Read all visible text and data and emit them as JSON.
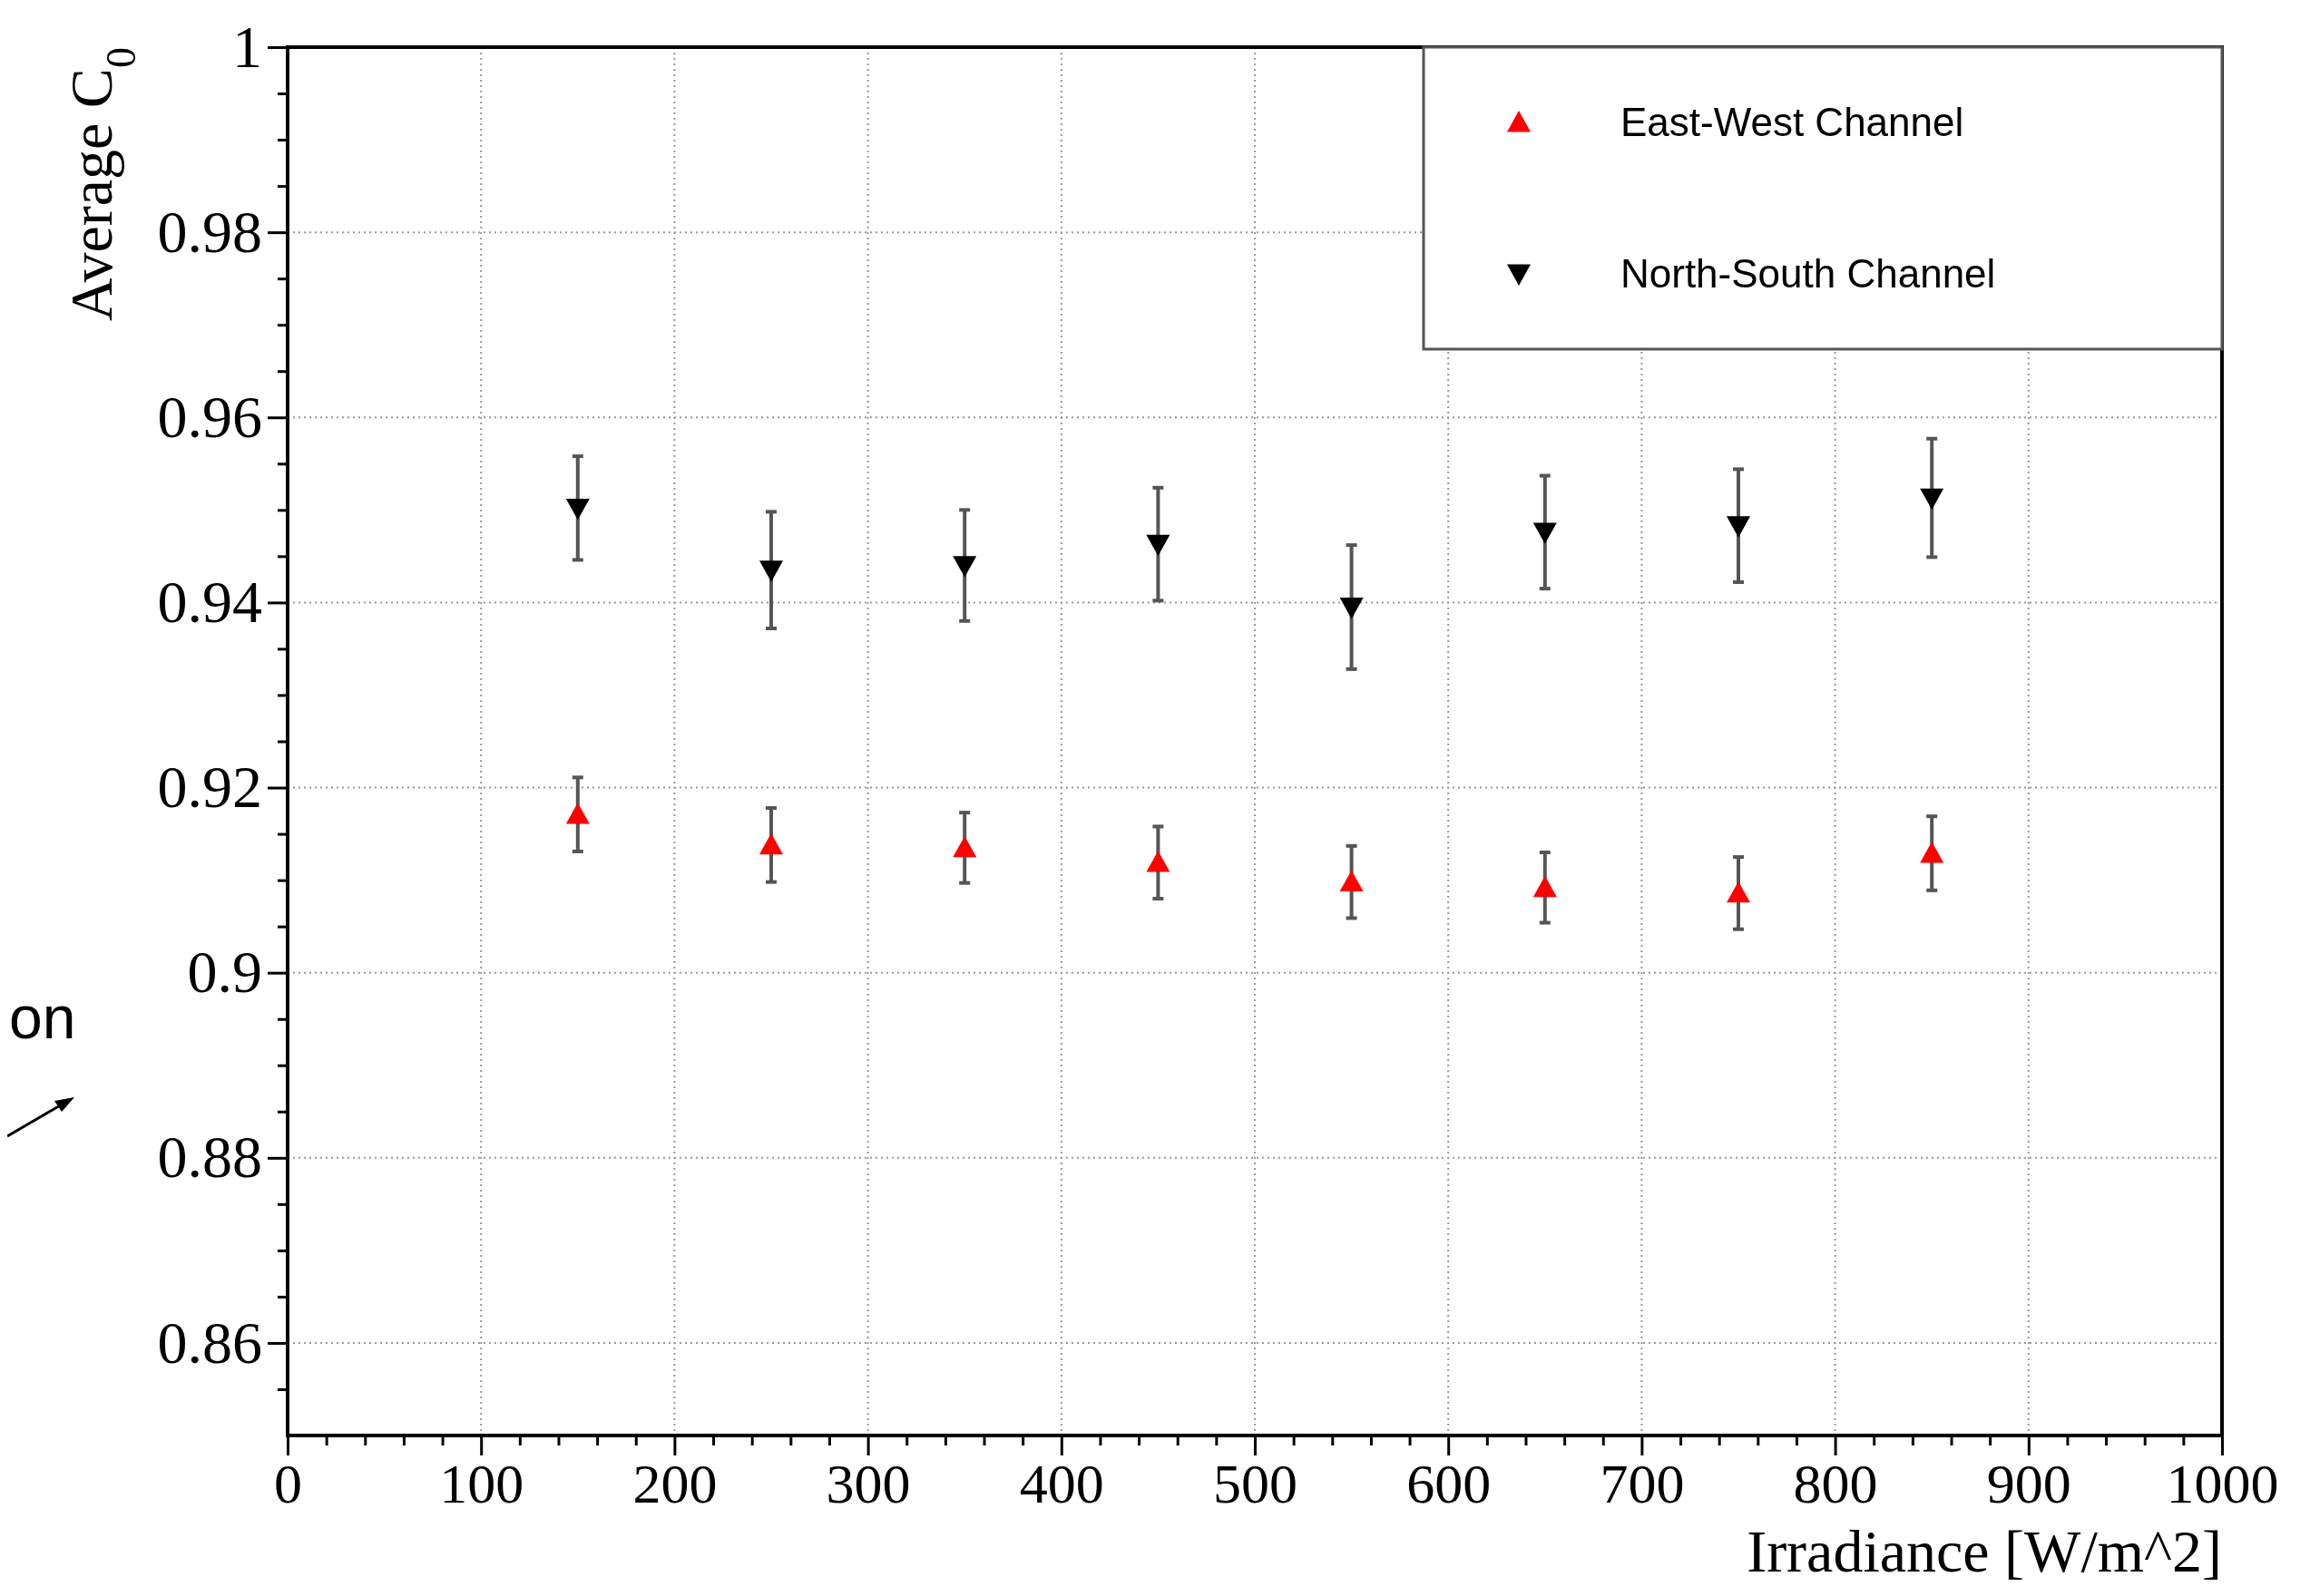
{
  "chart_data": {
    "type": "scatter",
    "xlabel": "Irradiance [W/m^2]",
    "ylabel": "Average C$_{0}$",
    "x": [
      150,
      250,
      350,
      450,
      550,
      650,
      750,
      850
    ],
    "series": [
      {
        "name": "East-West Channel",
        "color": "#ff0000",
        "marker": "triangle",
        "values": [
          0.9171,
          0.9138,
          0.9135,
          0.9119,
          0.9098,
          0.9092,
          0.9086,
          0.9129
        ],
        "errors": [
          0.004,
          0.004,
          0.0038,
          0.0039,
          0.0039,
          0.0038,
          0.0039,
          0.004
        ]
      },
      {
        "name": "North-South Channel",
        "color": "#000000",
        "marker": "triangle-down",
        "values": [
          0.9502,
          0.9435,
          0.944,
          0.9463,
          0.9395,
          0.9476,
          0.9483,
          0.9513
        ],
        "errors": [
          0.0056,
          0.0063,
          0.006,
          0.0061,
          0.0067,
          0.0061,
          0.0061,
          0.0064
        ]
      }
    ],
    "xlim": [
      0,
      1000
    ],
    "xticks": [
      0,
      {
        "value": 20,
        "label": null
      },
      {
        "value": 40,
        "label": null
      },
      {
        "value": 60,
        "label": null
      },
      {
        "value": 80,
        "label": null
      },
      100,
      {
        "value": 120,
        "label": null
      },
      {
        "value": 140,
        "label": null
      },
      {
        "value": 160,
        "label": null
      },
      {
        "value": 180,
        "label": null
      },
      200,
      {
        "value": 220,
        "label": null
      },
      {
        "value": 240,
        "label": null
      },
      {
        "value": 260,
        "label": null
      },
      {
        "value": 280,
        "label": null
      },
      300,
      {
        "value": 320,
        "label": null
      },
      {
        "value": 340,
        "label": null
      },
      {
        "value": 360,
        "label": null
      },
      {
        "value": 380,
        "label": null
      },
      400,
      {
        "value": 420,
        "label": null
      },
      {
        "value": 440,
        "label": null
      },
      {
        "value": 460,
        "label": null
      },
      {
        "value": 480,
        "label": null
      },
      500,
      {
        "value": 520,
        "label": null
      },
      {
        "value": 540,
        "label": null
      },
      {
        "value": 560,
        "label": null
      },
      {
        "value": 580,
        "label": null
      },
      600,
      {
        "value": 620,
        "label": null
      },
      {
        "value": 640,
        "label": null
      },
      {
        "value": 660,
        "label": null
      },
      {
        "value": 680,
        "label": null
      },
      700,
      {
        "value": 720,
        "label": null
      },
      {
        "value": 740,
        "label": null
      },
      {
        "value": 760,
        "label": null
      },
      {
        "value": 780,
        "label": null
      },
      800,
      {
        "value": 820,
        "label": null
      },
      {
        "value": 840,
        "label": null
      },
      {
        "value": 860,
        "label": null
      },
      {
        "value": 880,
        "label": null
      },
      900,
      {
        "value": 920,
        "label": null
      },
      {
        "value": 940,
        "label": null
      },
      {
        "value": 960,
        "label": null
      },
      {
        "value": 980,
        "label": null
      },
      1000
    ],
    "ylim": [
      0.85,
      1
    ],
    "yticks": [
      {
        "value": 0.855,
        "label": null
      },
      0.86,
      {
        "value": 0.865,
        "label": null
      },
      {
        "value": 0.87,
        "label": null
      },
      {
        "value": 0.875,
        "label": null
      },
      0.88,
      {
        "value": 0.885,
        "label": null
      },
      {
        "value": 0.89,
        "label": null
      },
      {
        "value": 0.895,
        "label": null
      },
      0.9,
      {
        "value": 0.905,
        "label": null
      },
      {
        "value": 0.91,
        "label": null
      },
      {
        "value": 0.915,
        "label": null
      },
      0.92,
      {
        "value": 0.925,
        "label": null
      },
      {
        "value": 0.93,
        "label": null
      },
      {
        "value": 0.935,
        "label": null
      },
      0.94,
      {
        "value": 0.945,
        "label": null
      },
      {
        "value": 0.95,
        "label": null
      },
      {
        "value": 0.955,
        "label": null
      },
      0.96,
      {
        "value": 0.965,
        "label": null
      },
      {
        "value": 0.97,
        "label": null
      },
      {
        "value": 0.975,
        "label": null
      },
      0.98,
      {
        "value": 0.985,
        "label": null
      },
      {
        "value": 0.99,
        "label": null
      },
      {
        "value": 0.995,
        "label": null
      },
      1
    ],
    "grid": true,
    "legend": "top right",
    "annotations": [
      "on"
    ]
  }
}
